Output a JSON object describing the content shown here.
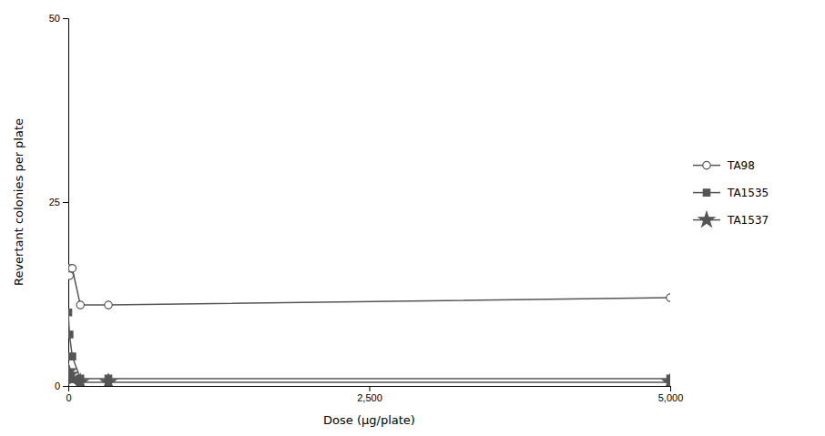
{
  "chart_data": {
    "type": "line",
    "x": [
      0,
      10,
      33,
      100,
      333,
      5000
    ],
    "series": [
      {
        "name": "TA98",
        "color": "#555555",
        "marker": "circle-open",
        "values": [
          16,
          15,
          16,
          11,
          11,
          12
        ]
      },
      {
        "name": "TA1535",
        "color": "#555555",
        "marker": "square",
        "values": [
          10,
          7,
          4,
          1,
          1,
          1
        ]
      },
      {
        "name": "TA1537",
        "color": "#555555",
        "marker": "star",
        "values": [
          2,
          1.5,
          1,
          0.5,
          0.5,
          0.5
        ]
      }
    ],
    "xlabel": "Dose (μg/plate)",
    "ylabel": "Revertant colonies per plate",
    "xlim": [
      0,
      5000
    ],
    "ylim": [
      0,
      50
    ],
    "xticks": [
      0,
      {
        "value": 2500,
        "label": "2,500"
      },
      {
        "value": 5000,
        "label": "5,000"
      }
    ],
    "yticks": [
      0,
      25,
      50
    ],
    "legend": "right",
    "grid": false
  }
}
